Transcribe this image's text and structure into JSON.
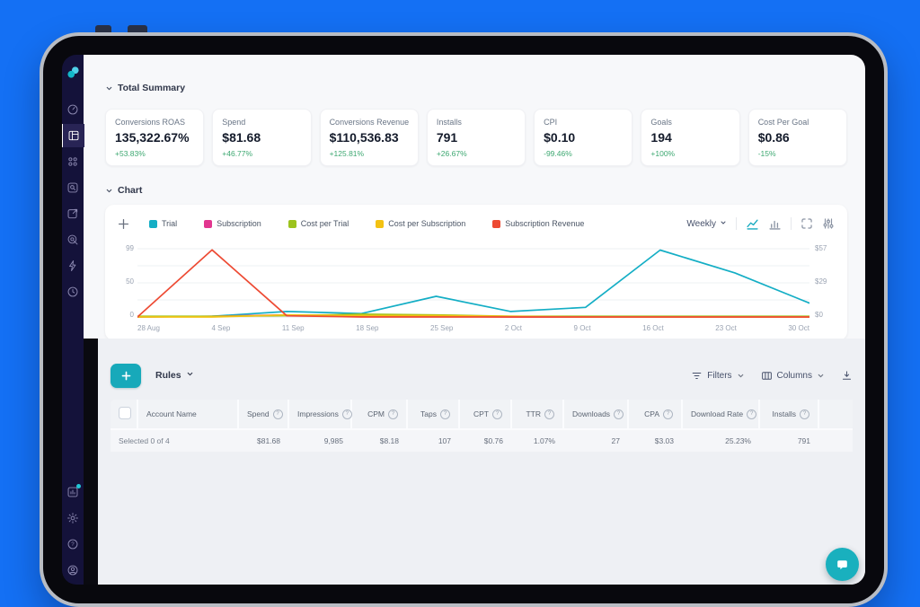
{
  "summary": {
    "title": "Total Summary",
    "cards": [
      {
        "label": "Conversions ROAS",
        "value": "135,322.67%",
        "delta": "+53.83%"
      },
      {
        "label": "Spend",
        "value": "$81.68",
        "delta": "+46.77%"
      },
      {
        "label": "Conversions Revenue",
        "value": "$110,536.83",
        "delta": "+125.81%"
      },
      {
        "label": "Installs",
        "value": "791",
        "delta": "+26.67%"
      },
      {
        "label": "CPI",
        "value": "$0.10",
        "delta": "-99.46%"
      },
      {
        "label": "Goals",
        "value": "194",
        "delta": "+100%"
      },
      {
        "label": "Cost Per Goal",
        "value": "$0.86",
        "delta": "-15%"
      }
    ],
    "delta_color": "#3da871"
  },
  "chart_section": {
    "title": "Chart",
    "period": "Weekly"
  },
  "chart_data": {
    "type": "line",
    "x": [
      "28 Aug",
      "4 Sep",
      "11 Sep",
      "18 Sep",
      "25 Sep",
      "2 Oct",
      "9 Oct",
      "16 Oct",
      "23 Oct",
      "30 Oct"
    ],
    "left_axis": {
      "max": 99,
      "label_ticks": [
        "99",
        "50",
        "0"
      ]
    },
    "right_axis": {
      "max": 57,
      "label_ticks": [
        "$57",
        "$29",
        "$0"
      ]
    },
    "grid": true,
    "legend_position": "top",
    "series": [
      {
        "name": "Trial",
        "color": "#14aec5",
        "axis": "left",
        "values": [
          0,
          1,
          8,
          5,
          30,
          8,
          14,
          97,
          64,
          20
        ]
      },
      {
        "name": "Subscription",
        "color": "#e2368f",
        "axis": "left",
        "values": [
          0,
          1,
          3,
          1,
          1,
          0,
          0,
          0,
          0,
          0
        ]
      },
      {
        "name": "Cost per Trial",
        "color": "#9cc31d",
        "axis": "left",
        "values": [
          1,
          1,
          2,
          4,
          3,
          1,
          1,
          1,
          1,
          1
        ]
      },
      {
        "name": "Cost per Subscription",
        "color": "#f3c212",
        "axis": "left",
        "values": [
          0,
          0,
          3,
          2,
          2,
          1,
          0,
          0,
          0,
          0
        ]
      },
      {
        "name": "Subscription Revenue",
        "color": "#ed4a33",
        "axis": "right",
        "values": [
          0,
          56,
          1,
          0,
          0,
          0,
          0,
          0,
          0,
          0
        ]
      }
    ]
  },
  "rules": {
    "label": "Rules",
    "filters": "Filters",
    "columns": "Columns"
  },
  "table": {
    "info_glyph": "?",
    "columns": [
      "Account Name",
      "Spend",
      "Impressions",
      "CPM",
      "Taps",
      "CPT",
      "TTR",
      "Downloads",
      "CPA",
      "Download Rate",
      "Installs"
    ],
    "summary": {
      "selected": "Selected 0 of 4",
      "values": [
        "$81.68",
        "9,985",
        "$8.18",
        "107",
        "$0.76",
        "1.07%",
        "27",
        "$3.03",
        "25.23%",
        "791"
      ]
    }
  }
}
